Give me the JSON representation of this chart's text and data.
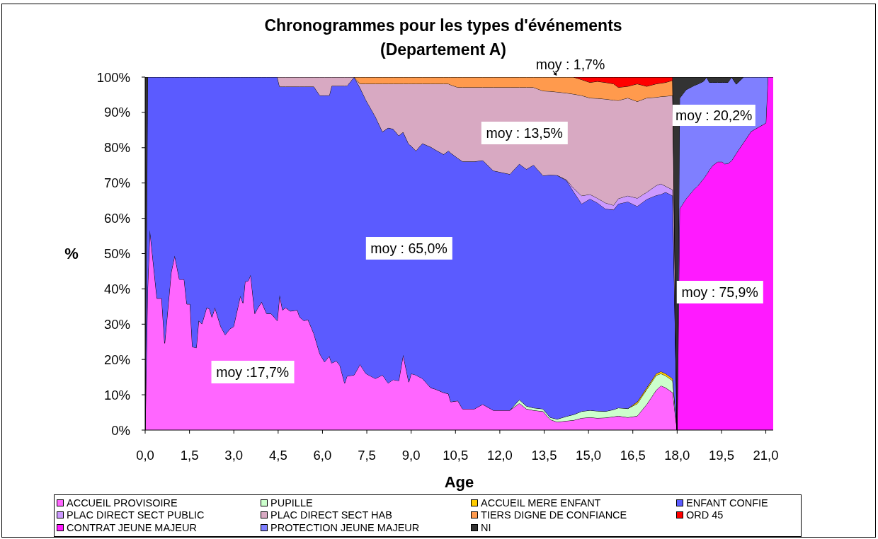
{
  "chart_data": {
    "type": "area",
    "stacked": true,
    "title": "Chronogrammes pour les types d'événements\n(Departement A)",
    "xlabel": "Age",
    "ylabel": "%",
    "legend": "bottom",
    "xlim": [
      0,
      21.25
    ],
    "xticks": [
      {
        "value": 0,
        "label": "0,0"
      },
      {
        "value": 1.5,
        "label": "1,5"
      },
      {
        "value": 3,
        "label": "3,0"
      },
      {
        "value": 4.5,
        "label": "4,5"
      },
      {
        "value": 6,
        "label": "6,0"
      },
      {
        "value": 7.5,
        "label": "7,5"
      },
      {
        "value": 9,
        "label": "9,0"
      },
      {
        "value": 10.5,
        "label": "10,5"
      },
      {
        "value": 12,
        "label": "12,0"
      },
      {
        "value": 13.5,
        "label": "13,5"
      },
      {
        "value": 15,
        "label": "15,0"
      },
      {
        "value": 16.5,
        "label": "16,5"
      },
      {
        "value": 18,
        "label": "18,0"
      },
      {
        "value": 19.5,
        "label": "19,5"
      },
      {
        "value": 21,
        "label": "21,0"
      }
    ],
    "ylim": [
      0,
      100
    ],
    "yticks": [
      {
        "value": 0,
        "label": "0%"
      },
      {
        "value": 10,
        "label": "10%"
      },
      {
        "value": 20,
        "label": "20%"
      },
      {
        "value": 30,
        "label": "30%"
      },
      {
        "value": 40,
        "label": "40%"
      },
      {
        "value": 50,
        "label": "50%"
      },
      {
        "value": 60,
        "label": "60%"
      },
      {
        "value": 70,
        "label": "70%"
      },
      {
        "value": 80,
        "label": "80%"
      },
      {
        "value": 90,
        "label": "90%"
      },
      {
        "value": 100,
        "label": "100%"
      }
    ],
    "x": [
      0,
      0.083,
      0.16,
      0.4,
      0.56,
      0.66,
      0.88,
      1.0,
      1.16,
      1.32,
      1.41,
      1.52,
      1.6,
      1.73,
      1.81,
      1.92,
      2.08,
      2.18,
      2.26,
      2.36,
      2.56,
      2.71,
      2.87,
      2.99,
      3.22,
      3.31,
      3.38,
      3.49,
      3.57,
      3.71,
      3.79,
      3.94,
      4.11,
      4.26,
      4.47,
      4.55,
      4.65,
      4.75,
      4.91,
      5.15,
      5.23,
      5.37,
      5.51,
      5.71,
      5.91,
      6.07,
      6.23,
      6.31,
      6.47,
      6.59,
      6.75,
      6.83,
      7.07,
      7.27,
      7.47,
      7.79,
      8.03,
      8.22,
      8.39,
      8.58,
      8.73,
      8.92,
      9.0,
      9.16,
      9.38,
      9.66,
      9.82,
      10.1,
      10.26,
      10.34,
      10.58,
      10.74,
      11.14,
      11.42,
      11.78,
      12.34,
      12.66,
      12.9,
      13.14,
      13.46,
      13.7,
      13.94,
      14.26,
      14.5,
      14.77,
      15.05,
      15.3,
      15.57,
      15.85,
      16.01,
      16.33,
      16.65,
      16.97,
      17.29,
      17.45,
      17.61,
      17.85,
      18.0,
      18.083,
      18.3,
      18.57,
      18.69,
      18.89,
      19.0,
      19.09,
      19.21,
      19.37,
      19.53,
      19.6,
      19.72,
      19.84,
      20.0,
      20.25,
      20.5,
      20.75,
      20.9,
      21.0,
      21.07,
      21.25
    ],
    "series": [
      {
        "name": "ACCUEIL PROVISOIRE",
        "color": "#ff66ff",
        "values": [
          0,
          40,
          56.7,
          37.3,
          37.3,
          24.6,
          44.7,
          49.4,
          42.7,
          42.7,
          35.7,
          35.7,
          23.6,
          23.3,
          31.0,
          30.1,
          34.7,
          34.3,
          32.0,
          34.7,
          29.3,
          27.0,
          28.7,
          29.3,
          38.0,
          36.0,
          42.0,
          42.3,
          44.0,
          33.0,
          34.3,
          36.3,
          33.0,
          33.0,
          31.0,
          38.3,
          34.0,
          34.7,
          33.7,
          34.0,
          32.0,
          31.0,
          31.3,
          27.3,
          21.6,
          19.3,
          21.0,
          19.0,
          19.6,
          18.3,
          13.3,
          15.3,
          15.6,
          18.6,
          16.0,
          14.6,
          15.6,
          13.3,
          14.3,
          14.0,
          21.3,
          13.6,
          16.0,
          15.6,
          14.6,
          12.0,
          11.6,
          10.6,
          10.3,
          8.0,
          8.3,
          6.0,
          6.0,
          7.3,
          5.6,
          5.6,
          7.6,
          6.0,
          5.6,
          5.3,
          3.0,
          2.3,
          2.6,
          2.8,
          3.4,
          3.6,
          3.4,
          3.5,
          3.8,
          4.0,
          3.6,
          4.0,
          7.3,
          11.3,
          12.6,
          12.0,
          10.6,
          0,
          null,
          null,
          null,
          null,
          null,
          null,
          null,
          null,
          null,
          null,
          null,
          null,
          null,
          null,
          null,
          null,
          null,
          null,
          null,
          null,
          null
        ]
      },
      {
        "name": "PUPILLE",
        "color": "#ccffcc",
        "values": [
          null,
          null,
          null,
          null,
          null,
          null,
          null,
          null,
          null,
          null,
          null,
          null,
          null,
          null,
          null,
          null,
          null,
          null,
          null,
          null,
          null,
          null,
          null,
          null,
          null,
          null,
          null,
          null,
          null,
          null,
          null,
          null,
          null,
          null,
          null,
          null,
          null,
          null,
          null,
          null,
          null,
          null,
          null,
          null,
          null,
          null,
          null,
          null,
          null,
          null,
          null,
          null,
          null,
          null,
          null,
          null,
          null,
          null,
          null,
          null,
          null,
          null,
          null,
          null,
          null,
          null,
          null,
          null,
          null,
          null,
          null,
          null,
          null,
          null,
          null,
          0,
          1.0,
          0.8,
          0.7,
          0.7,
          0.6,
          0.8,
          1.3,
          1.6,
          1.9,
          2.0,
          2.0,
          1.8,
          2.0,
          2.3,
          2.5,
          3.5,
          4.2,
          4.2,
          3.4,
          3.4,
          3.4,
          0,
          null,
          null,
          null,
          null,
          null,
          null,
          null,
          null,
          null,
          null,
          null,
          null,
          null,
          null,
          null,
          null,
          null,
          null,
          null,
          null,
          null
        ]
      },
      {
        "name": "ACCUEIL MERE ENFANT",
        "color": "#ffcc00",
        "values": [
          null,
          null,
          null,
          null,
          null,
          null,
          null,
          null,
          null,
          null,
          null,
          null,
          null,
          null,
          null,
          null,
          null,
          null,
          null,
          null,
          null,
          null,
          null,
          null,
          null,
          null,
          null,
          null,
          null,
          null,
          null,
          null,
          null,
          null,
          null,
          null,
          null,
          null,
          null,
          null,
          null,
          null,
          null,
          null,
          null,
          null,
          null,
          null,
          null,
          null,
          null,
          null,
          null,
          null,
          null,
          null,
          null,
          null,
          null,
          null,
          null,
          null,
          null,
          null,
          null,
          null,
          null,
          null,
          null,
          null,
          null,
          null,
          null,
          null,
          null,
          null,
          null,
          null,
          null,
          null,
          null,
          null,
          null,
          null,
          null,
          null,
          null,
          null,
          null,
          null,
          0,
          0.5,
          0.5,
          0.5,
          0.6,
          0.6,
          0.6,
          0,
          null,
          null,
          null,
          null,
          null,
          null,
          null,
          null,
          null,
          null,
          null,
          null,
          null,
          null,
          null,
          null,
          null,
          null,
          null,
          null,
          null
        ]
      },
      {
        "name": "ENFANT CONFIE",
        "color": "#5b5bff",
        "values": [
          0,
          60,
          43.3,
          62.7,
          62.7,
          75.4,
          55.3,
          50.6,
          57.3,
          57.3,
          64.3,
          64.3,
          76.4,
          76.7,
          69.0,
          69.9,
          65.3,
          65.7,
          68.0,
          65.3,
          70.7,
          73.0,
          71.3,
          70.7,
          62.0,
          64.0,
          58.0,
          57.7,
          56.0,
          67.0,
          65.7,
          63.7,
          67.0,
          67.0,
          69.0,
          59.0,
          63.3,
          62.6,
          63.6,
          63.3,
          65.3,
          66.3,
          66.0,
          70.0,
          73.2,
          75.5,
          73.8,
          78.5,
          77.9,
          79.2,
          84.2,
          82.2,
          84.4,
          78.4,
          77.5,
          74.2,
          68.9,
          72.3,
          71.0,
          69.4,
          63.1,
          67.4,
          64.5,
          63.5,
          66.6,
          68.2,
          67.8,
          67.5,
          68.8,
          70.5,
          68.7,
          70.1,
          70.1,
          69.1,
          67.9,
          66.9,
          66.8,
          67.1,
          68.8,
          66.1,
          68.7,
          69.1,
          66.8,
          63.1,
          58.8,
          59.9,
          59.0,
          57.4,
          56.6,
          57.8,
          58.6,
          55.4,
          53.4,
          50.5,
          50.2,
          51.4,
          51.8,
          0,
          null,
          null,
          null,
          null,
          null,
          null,
          null,
          null,
          null,
          null,
          null,
          null,
          null,
          null,
          null,
          null,
          null,
          null,
          null,
          null,
          null
        ]
      },
      {
        "name": "PLAC DIRECT SECT PUBLIC",
        "color": "#cc99ff",
        "values": [
          null,
          null,
          null,
          null,
          null,
          null,
          null,
          null,
          null,
          null,
          null,
          null,
          null,
          null,
          null,
          null,
          null,
          null,
          null,
          null,
          null,
          null,
          null,
          null,
          null,
          null,
          null,
          null,
          null,
          null,
          null,
          null,
          null,
          null,
          null,
          null,
          null,
          null,
          null,
          null,
          null,
          null,
          null,
          null,
          null,
          null,
          null,
          null,
          null,
          null,
          null,
          null,
          null,
          null,
          null,
          null,
          null,
          null,
          null,
          null,
          null,
          null,
          null,
          null,
          null,
          null,
          null,
          null,
          null,
          null,
          null,
          null,
          null,
          null,
          null,
          null,
          null,
          null,
          null,
          null,
          null,
          0,
          0.2,
          1.0,
          2.3,
          1.3,
          1.3,
          1.7,
          1.3,
          1.5,
          1.7,
          2.3,
          2.0,
          2.8,
          3.0,
          1.7,
          1.7,
          0,
          null,
          null,
          null,
          null,
          null,
          null,
          null,
          null,
          null,
          null,
          null,
          null,
          null,
          null,
          null,
          null,
          null,
          null,
          null,
          null,
          null
        ]
      },
      {
        "name": "PLAC DIRECT SECT HAB",
        "color": "#d8a9c2",
        "values": [
          null,
          null,
          null,
          null,
          null,
          null,
          null,
          null,
          null,
          null,
          null,
          null,
          null,
          null,
          null,
          null,
          null,
          null,
          null,
          null,
          null,
          null,
          null,
          null,
          null,
          null,
          null,
          null,
          null,
          null,
          null,
          null,
          null,
          null,
          0,
          2.7,
          2.7,
          2.7,
          2.7,
          2.7,
          2.7,
          2.7,
          2.7,
          2.7,
          5.2,
          5.2,
          5.2,
          2.5,
          2.5,
          2.5,
          2.5,
          2.5,
          0,
          1.1,
          4.6,
          9.3,
          13.6,
          12.5,
          12.8,
          14.7,
          13.7,
          17.1,
          17.6,
          19.0,
          16.9,
          17.9,
          18.7,
          20.0,
          19.0,
          19.3,
          20.1,
          21.0,
          21.0,
          20.7,
          23.6,
          24.6,
          21.7,
          23.2,
          22.0,
          24.0,
          23.7,
          23.6,
          24.6,
          26.7,
          28.4,
          27.3,
          28.3,
          29.4,
          29.8,
          27.8,
          27.7,
          27.4,
          26.7,
          25.0,
          24.7,
          25.5,
          26.7,
          0,
          null,
          null,
          null,
          null,
          null,
          null,
          null,
          null,
          null,
          null,
          null,
          null,
          null,
          null,
          null,
          null,
          null,
          null,
          null,
          null,
          null
        ]
      },
      {
        "name": "TIERS DIGNE DE CONFIANCE",
        "color": "#ff9a4d",
        "values": [
          null,
          null,
          null,
          null,
          null,
          null,
          null,
          null,
          null,
          null,
          null,
          null,
          null,
          null,
          null,
          null,
          null,
          null,
          null,
          null,
          null,
          null,
          null,
          null,
          null,
          null,
          null,
          null,
          null,
          null,
          null,
          null,
          null,
          null,
          null,
          null,
          null,
          null,
          null,
          null,
          null,
          null,
          null,
          null,
          null,
          null,
          null,
          null,
          null,
          null,
          null,
          null,
          0,
          1.9,
          1.9,
          1.9,
          1.9,
          1.9,
          1.9,
          1.9,
          1.9,
          1.9,
          1.9,
          1.9,
          1.9,
          1.9,
          1.9,
          1.9,
          1.9,
          2.2,
          2.9,
          2.9,
          2.9,
          2.9,
          2.9,
          2.9,
          2.9,
          2.9,
          2.9,
          3.9,
          4.0,
          4.2,
          4.5,
          4.8,
          4.5,
          4.4,
          4.8,
          4.7,
          4.6,
          3.7,
          3.3,
          5.0,
          3.3,
          3.8,
          3.8,
          3.9,
          4.3,
          0,
          null,
          null,
          null,
          null,
          null,
          null,
          null,
          null,
          null,
          null,
          null,
          null,
          null,
          null,
          null,
          null,
          null,
          null,
          null,
          null,
          null
        ]
      },
      {
        "name": "ORD 45",
        "color": "#ff0000",
        "values": [
          null,
          null,
          null,
          null,
          null,
          null,
          null,
          null,
          null,
          null,
          null,
          null,
          null,
          null,
          null,
          null,
          null,
          null,
          null,
          null,
          null,
          null,
          null,
          null,
          null,
          null,
          null,
          null,
          null,
          null,
          null,
          null,
          null,
          null,
          null,
          null,
          null,
          null,
          null,
          null,
          null,
          null,
          null,
          null,
          null,
          null,
          null,
          null,
          null,
          null,
          null,
          null,
          null,
          null,
          null,
          null,
          null,
          null,
          null,
          null,
          null,
          null,
          null,
          null,
          null,
          null,
          null,
          null,
          null,
          null,
          null,
          null,
          null,
          null,
          null,
          null,
          null,
          null,
          null,
          null,
          null,
          null,
          null,
          0,
          0.7,
          1.5,
          1.2,
          1.5,
          1.9,
          2.9,
          2.6,
          1.9,
          2.6,
          1.9,
          1.7,
          1.5,
          0.9,
          0,
          null,
          null,
          null,
          null,
          null,
          null,
          null,
          null,
          null,
          null,
          null,
          null,
          null,
          null,
          null,
          null,
          null,
          null,
          null,
          null,
          null
        ]
      },
      {
        "name": "CONTRAT JEUNE MAJEUR",
        "color": "#ff1aff",
        "values": [
          null,
          null,
          null,
          null,
          null,
          null,
          null,
          null,
          null,
          null,
          null,
          null,
          null,
          null,
          null,
          null,
          null,
          null,
          null,
          null,
          null,
          null,
          null,
          null,
          null,
          null,
          null,
          null,
          null,
          null,
          null,
          null,
          null,
          null,
          null,
          null,
          null,
          null,
          null,
          null,
          null,
          null,
          null,
          null,
          null,
          null,
          null,
          null,
          null,
          null,
          null,
          null,
          null,
          null,
          null,
          null,
          null,
          null,
          null,
          null,
          null,
          null,
          null,
          null,
          null,
          null,
          null,
          null,
          null,
          null,
          null,
          null,
          null,
          null,
          null,
          null,
          null,
          null,
          null,
          null,
          null,
          null,
          null,
          null,
          null,
          null,
          null,
          null,
          null,
          null,
          null,
          null,
          null,
          null,
          null,
          null,
          null,
          0,
          62.7,
          65.5,
          68.2,
          69.1,
          71.2,
          72.5,
          73.7,
          75.0,
          76.0,
          76.0,
          75.4,
          75.5,
          76.3,
          78.4,
          81.5,
          84.6,
          85.8,
          86.5,
          87.0,
          100,
          100
        ]
      },
      {
        "name": "PROTECTION JEUNE MAJEUR",
        "color": "#7f7fff",
        "values": [
          null,
          null,
          null,
          null,
          null,
          null,
          null,
          null,
          null,
          null,
          null,
          null,
          null,
          null,
          null,
          null,
          null,
          null,
          null,
          null,
          null,
          null,
          null,
          null,
          null,
          null,
          null,
          null,
          null,
          null,
          null,
          null,
          null,
          null,
          null,
          null,
          null,
          null,
          null,
          null,
          null,
          null,
          null,
          null,
          null,
          null,
          null,
          null,
          null,
          null,
          null,
          null,
          null,
          null,
          null,
          null,
          null,
          null,
          null,
          null,
          null,
          null,
          null,
          null,
          null,
          null,
          null,
          null,
          null,
          null,
          null,
          null,
          null,
          null,
          null,
          null,
          null,
          null,
          null,
          null,
          null,
          null,
          null,
          null,
          null,
          null,
          null,
          null,
          null,
          null,
          null,
          null,
          null,
          null,
          null,
          null,
          null,
          0,
          31.3,
          30.9,
          29.4,
          28.9,
          27.6,
          27.5,
          24.8,
          23.5,
          22.5,
          22.5,
          23.1,
          23.0,
          23.7,
          19.6,
          18.5,
          15.4,
          14.2,
          13.5,
          13.0,
          0,
          null
        ]
      },
      {
        "name": "NI",
        "color": "#333333",
        "values": [
          100,
          0,
          null,
          null,
          null,
          null,
          null,
          null,
          null,
          null,
          null,
          null,
          null,
          null,
          null,
          null,
          null,
          null,
          null,
          null,
          null,
          null,
          null,
          null,
          null,
          null,
          null,
          null,
          null,
          null,
          null,
          null,
          null,
          null,
          null,
          null,
          null,
          null,
          null,
          null,
          null,
          null,
          null,
          null,
          null,
          null,
          null,
          null,
          null,
          null,
          null,
          null,
          null,
          null,
          null,
          null,
          null,
          null,
          null,
          null,
          null,
          null,
          null,
          null,
          null,
          null,
          null,
          null,
          null,
          null,
          null,
          null,
          null,
          null,
          null,
          null,
          null,
          null,
          null,
          null,
          null,
          null,
          null,
          null,
          null,
          null,
          null,
          null,
          null,
          null,
          null,
          null,
          null,
          null,
          null,
          null,
          0,
          100,
          6.0,
          3.6,
          2.4,
          2.0,
          1.2,
          0,
          1.5,
          1.5,
          1.5,
          1.5,
          1.5,
          1.5,
          0,
          2.0,
          0,
          null,
          null,
          null,
          null,
          null,
          null
        ]
      }
    ],
    "annotations": [
      "moy :17,7%",
      "moy : 65,0%",
      "moy : 13,5%",
      "moy : 1,7%",
      "moy : 20,2%",
      "moy : 75,9%"
    ]
  }
}
